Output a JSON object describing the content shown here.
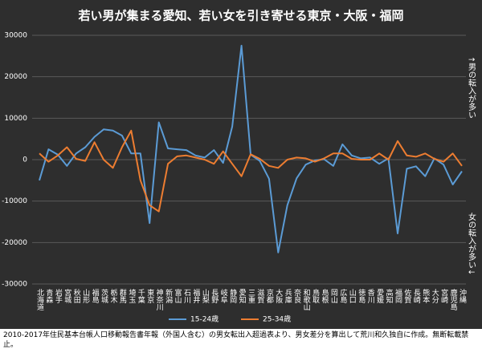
{
  "chart_data": {
    "type": "line",
    "title": "若い男が集まる愛知、若い女を引き寄せる東京・大阪・福岡",
    "annotations": [
      "↑男の転入が多い",
      "女の転入が多い↓"
    ],
    "note": "2010-2017年住民基本台帳人口移動報告書年報（外国人含む）の男女転出入超過表より、男女差分を算出して荒川和久独自に作成。無断転載禁止。",
    "categories": [
      "北海道",
      "青森",
      "岩手",
      "宮城",
      "秋田",
      "山形",
      "福島",
      "茨城",
      "栃木",
      "群馬",
      "埼玉",
      "千葉",
      "東京",
      "神奈川",
      "新潟",
      "富山",
      "石川",
      "福井",
      "山梨",
      "長野",
      "岐阜",
      "静岡",
      "愛知",
      "三重",
      "滋賀",
      "京都",
      "大阪",
      "兵庫",
      "奈良",
      "和歌山",
      "鳥取",
      "島根",
      "岡山",
      "広島",
      "山口",
      "徳島",
      "香川",
      "愛媛",
      "高知",
      "福岡",
      "佐賀",
      "長崎",
      "熊本",
      "大分",
      "宮崎",
      "鹿児島",
      "沖縄"
    ],
    "series": [
      {
        "name": "15-24歳",
        "color": "#5b9bd5",
        "values": [
          -5000,
          2500,
          1200,
          -1500,
          1500,
          3000,
          5500,
          7300,
          7000,
          5800,
          1500,
          1500,
          -15300,
          9000,
          2700,
          2500,
          2300,
          1000,
          500,
          2300,
          -800,
          8000,
          27500,
          1200,
          -300,
          -4600,
          -22400,
          -11000,
          -4500,
          -1200,
          -200,
          100,
          -1500,
          3700,
          1000,
          300,
          500,
          -1000,
          300,
          -17800,
          -2200,
          -1600,
          -4000,
          300,
          -1200,
          -6000,
          -2800
        ]
      },
      {
        "name": "25-34歳",
        "color": "#ed7d31",
        "values": [
          1500,
          -500,
          1000,
          3000,
          200,
          -300,
          4200,
          0,
          -2000,
          3000,
          7000,
          -5000,
          -11000,
          -12500,
          -1000,
          800,
          1000,
          500,
          0,
          -1000,
          2000,
          -1000,
          -4000,
          1300,
          200,
          -1500,
          -2000,
          0,
          500,
          300,
          -500,
          300,
          1500,
          1500,
          200,
          0,
          0,
          1500,
          0,
          4500,
          1000,
          700,
          1500,
          200,
          -500,
          1500,
          -1500
        ]
      }
    ],
    "ylim": [
      -30000,
      30000
    ],
    "yticks": [
      -30000,
      -20000,
      -10000,
      0,
      10000,
      20000,
      30000
    ],
    "grid": true,
    "legend": "bottom"
  }
}
